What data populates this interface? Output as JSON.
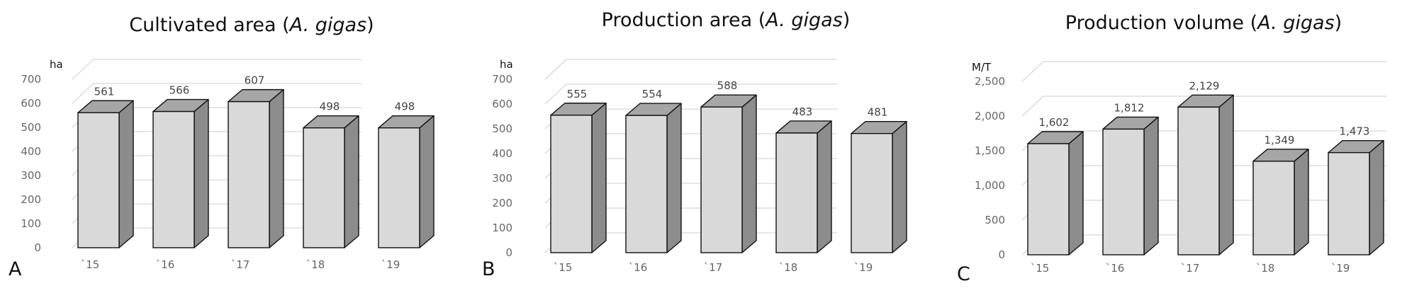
{
  "colors": {
    "bar_front": "#d9d9d9",
    "bar_top": "#a6a6a6",
    "bar_side": "#8c8c8c",
    "bar_stroke": "#111111",
    "grid": "#d6d6d6"
  },
  "chart_data": [
    {
      "panel_letter": "A",
      "type": "bar",
      "title": "Cultivated area (",
      "title_italic": "A. gigas",
      "title_end": ")",
      "ylabel": "ha",
      "categories": [
        "`15",
        "`16",
        "`17",
        "`18",
        "`19"
      ],
      "values": [
        561,
        566,
        607,
        498,
        498
      ],
      "value_labels": [
        "561",
        "566",
        "607",
        "498",
        "498"
      ],
      "ylim": [
        0,
        700
      ],
      "yticks": [
        0,
        100,
        200,
        300,
        400,
        500,
        600,
        700
      ],
      "ytick_labels": [
        "0",
        "100",
        "200",
        "300",
        "400",
        "500",
        "600",
        "700"
      ],
      "grid": true,
      "style": "3d-column"
    },
    {
      "panel_letter": "B",
      "type": "bar",
      "title": "Production area (",
      "title_italic": "A. gigas",
      "title_end": ")",
      "ylabel": "ha",
      "categories": [
        "`15",
        "`16",
        "`17",
        "`18",
        "`19"
      ],
      "values": [
        555,
        554,
        588,
        483,
        481
      ],
      "value_labels": [
        "555",
        "554",
        "588",
        "483",
        "481"
      ],
      "ylim": [
        0,
        700
      ],
      "yticks": [
        0,
        100,
        200,
        300,
        400,
        500,
        600,
        700
      ],
      "ytick_labels": [
        "0",
        "100",
        "200",
        "300",
        "400",
        "500",
        "600",
        "700"
      ],
      "grid": true,
      "style": "3d-column"
    },
    {
      "panel_letter": "C",
      "type": "bar",
      "title": "Production volume (",
      "title_italic": "A. gigas",
      "title_end": ")",
      "ylabel": "M/T",
      "categories": [
        "`15",
        "`16",
        "`17",
        "`18",
        "`19"
      ],
      "values": [
        1602,
        1812,
        2129,
        1349,
        1473
      ],
      "value_labels": [
        "1,602",
        "1,812",
        "2,129",
        "1,349",
        "1,473"
      ],
      "ylim": [
        0,
        2500
      ],
      "yticks": [
        0,
        500,
        1000,
        1500,
        2000,
        2500
      ],
      "ytick_labels": [
        "0",
        "500",
        "1,000",
        "1,500",
        "2,000",
        "2,500"
      ],
      "grid": true,
      "style": "3d-column"
    }
  ]
}
